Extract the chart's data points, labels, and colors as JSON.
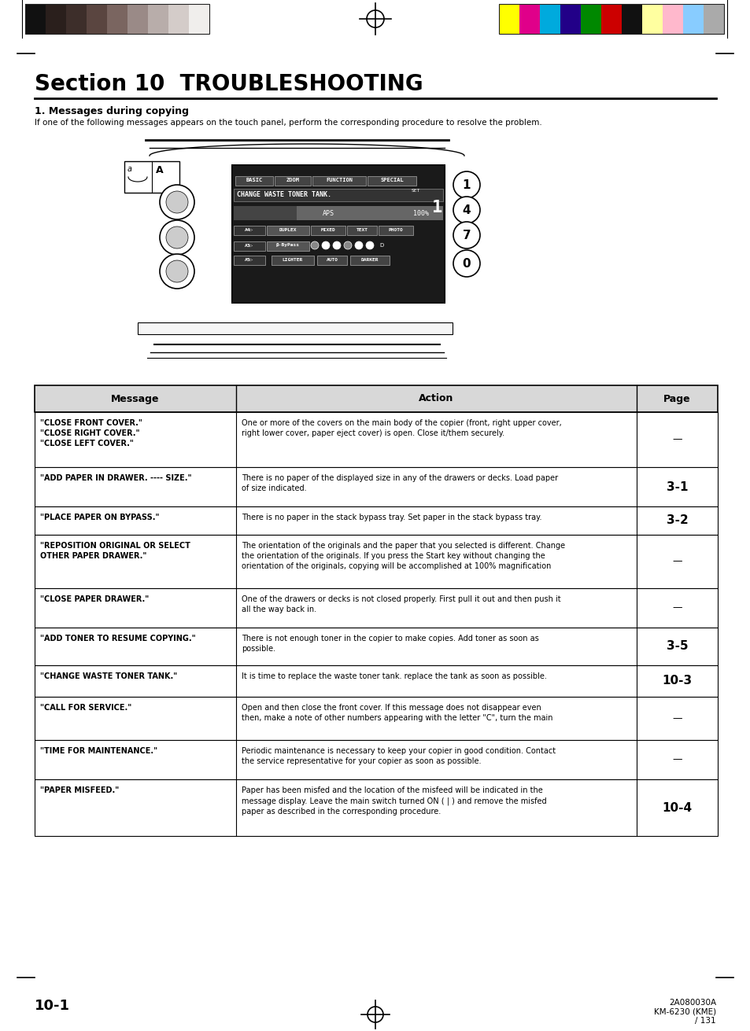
{
  "title": "Section 10  TROUBLESHOOTING",
  "subtitle": "1. Messages during copying",
  "intro_text": "If one of the following messages appears on the touch panel, perform the corresponding procedure to resolve the problem.",
  "table_headers": [
    "Message",
    "Action",
    "Page"
  ],
  "table_rows": [
    {
      "message": "\"CLOSE FRONT COVER.\"\n\"CLOSE RIGHT COVER.\"\n\"CLOSE LEFT COVER.\"",
      "action": "One or more of the covers on the main body of the copier (front, right upper cover,\nright lower cover, paper eject cover) is open. Close it/them securely.",
      "page": "—",
      "page_bold": false
    },
    {
      "message": "\"ADD PAPER IN DRAWER. ---- SIZE.\"",
      "action": "There is no paper of the displayed size in any of the drawers or decks. Load paper\nof size indicated.",
      "page": "3-1",
      "page_bold": true
    },
    {
      "message": "\"PLACE PAPER ON BYPASS.\"",
      "action": "There is no paper in the stack bypass tray. Set paper in the stack bypass tray.",
      "page": "3-2",
      "page_bold": true
    },
    {
      "message": "\"REPOSITION ORIGINAL OR SELECT\nOTHER PAPER DRAWER.\"",
      "action": "The orientation of the originals and the paper that you selected is different. Change\nthe orientation of the originals. If you press the Start key without changing the\norientation of the originals, copying will be accomplished at 100% magnification",
      "page": "—",
      "page_bold": false
    },
    {
      "message": "\"CLOSE PAPER DRAWER.\"",
      "action": "One of the drawers or decks is not closed properly. First pull it out and then push it\nall the way back in.",
      "page": "—",
      "page_bold": false
    },
    {
      "message": "\"ADD TONER TO RESUME COPYING.\"",
      "action": "There is not enough toner in the copier to make copies. Add toner as soon as\npossible.",
      "page": "3-5",
      "page_bold": true
    },
    {
      "message": "\"CHANGE WASTE TONER TANK.\"",
      "action": "It is time to replace the waste toner tank. replace the tank as soon as possible.",
      "page": "10-3",
      "page_bold": true
    },
    {
      "message": "\"CALL FOR SERVICE.\"",
      "action": "Open and then close the front cover. If this message does not disappear even\nthen, make a note of other numbers appearing with the letter \"C\", turn the main",
      "page": "—",
      "page_bold": false
    },
    {
      "message": "\"TIME FOR MAINTENANCE.\"",
      "action": "Periodic maintenance is necessary to keep your copier in good condition. Contact\nthe service representative for your copier as soon as possible.",
      "page": "—",
      "page_bold": false
    },
    {
      "message": "\"PAPER MISFEED.\"",
      "action": "Paper has been misfed and the location of the misfeed will be indicated in the\nmessage display. Leave the main switch turned ON ( | ) and remove the misfed\npaper as described in the corresponding procedure.",
      "page": "10-4",
      "page_bold": true
    }
  ],
  "footer_left": "10-1",
  "footer_right": "2A080030A\nKM-6230 (KME)\n/ 131",
  "bg_color": "#ffffff",
  "color_bar_left": [
    "#111111",
    "#2a1f1c",
    "#3d2e2a",
    "#5a4540",
    "#7a6560",
    "#9a8a87",
    "#b8adaa",
    "#d4ccc9",
    "#f0eeec"
  ],
  "color_bar_right": [
    "#ffff00",
    "#e0008a",
    "#00aadd",
    "#220088",
    "#008800",
    "#cc0000",
    "#111111",
    "#ffffa0",
    "#ffb8cc",
    "#88ccff",
    "#aaaaaa"
  ]
}
